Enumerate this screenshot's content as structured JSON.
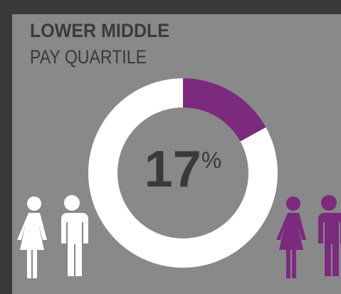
{
  "chart_data": {
    "type": "donut",
    "title": "LOWER MIDDLE",
    "subtitle": "PAY QUARTILE",
    "values": [
      17,
      83
    ],
    "value_labels": [
      "17%",
      null
    ],
    "colors": [
      "#7b2a7e",
      "#ffffff"
    ]
  }
}
